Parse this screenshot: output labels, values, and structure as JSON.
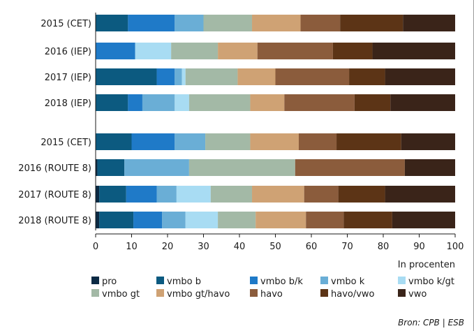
{
  "chart_data": {
    "type": "bar",
    "orientation": "horizontal",
    "stacked": true,
    "categories": [
      "2015 (CET)",
      "2016 (IEP)",
      "2017 (IEP)",
      "2018 (IEP)",
      "2015 (CET)",
      "2016 (ROUTE 8)",
      "2017 (ROUTE 8)",
      "2018 (ROUTE 8)"
    ],
    "groups": [
      [
        0,
        1,
        2,
        3
      ],
      [
        4,
        5,
        6,
        7
      ]
    ],
    "series": [
      {
        "name": "pro",
        "color": "#0b2a44",
        "values": [
          0.0,
          0.0,
          0.0,
          0.0,
          0.0,
          0.5,
          1.0,
          1.0
        ]
      },
      {
        "name": "vmbo b",
        "color": "#0c5a80",
        "values": [
          9.0,
          0.0,
          17.0,
          9.0,
          10.0,
          7.5,
          7.5,
          9.5
        ]
      },
      {
        "name": "vmbo b/k",
        "color": "#1f7ac8",
        "values": [
          13.0,
          11.0,
          5.0,
          4.0,
          12.0,
          0.0,
          8.5,
          8.0
        ]
      },
      {
        "name": "vmbo k",
        "color": "#6aaed6",
        "values": [
          8.0,
          0.0,
          2.0,
          9.0,
          8.5,
          18.0,
          5.5,
          6.5
        ]
      },
      {
        "name": "vmbo k/gt",
        "color": "#a8dcf3",
        "values": [
          0.0,
          10.0,
          1.0,
          4.0,
          0.0,
          0.0,
          9.5,
          9.0
        ]
      },
      {
        "name": "vmbo gt",
        "color": "#a3b9a6",
        "values": [
          13.5,
          13.0,
          14.5,
          17.0,
          12.5,
          29.5,
          11.5,
          10.5
        ]
      },
      {
        "name": "vmbo gt/havo",
        "color": "#cfa274",
        "values": [
          13.5,
          11.0,
          10.5,
          9.5,
          13.5,
          0.0,
          14.5,
          14.0
        ]
      },
      {
        "name": "havo",
        "color": "#8b5c3c",
        "values": [
          11.0,
          21.0,
          20.5,
          19.5,
          10.5,
          30.5,
          9.5,
          10.5
        ]
      },
      {
        "name": "havo/vwo",
        "color": "#5c3416",
        "values": [
          17.5,
          11.0,
          10.0,
          10.0,
          18.0,
          0.0,
          13.0,
          13.5
        ]
      },
      {
        "name": "vwo",
        "color": "#3a2419",
        "values": [
          14.5,
          23.0,
          19.5,
          18.0,
          15.0,
          14.0,
          19.5,
          17.5
        ]
      }
    ],
    "xlim": [
      0,
      100
    ],
    "xticks": [
      0,
      10,
      20,
      30,
      40,
      50,
      60,
      70,
      80,
      90,
      100
    ],
    "xlabel": "In procenten",
    "title": "",
    "legend_position": "bottom",
    "grid": false
  },
  "source": "Bron: CPB | ESB"
}
